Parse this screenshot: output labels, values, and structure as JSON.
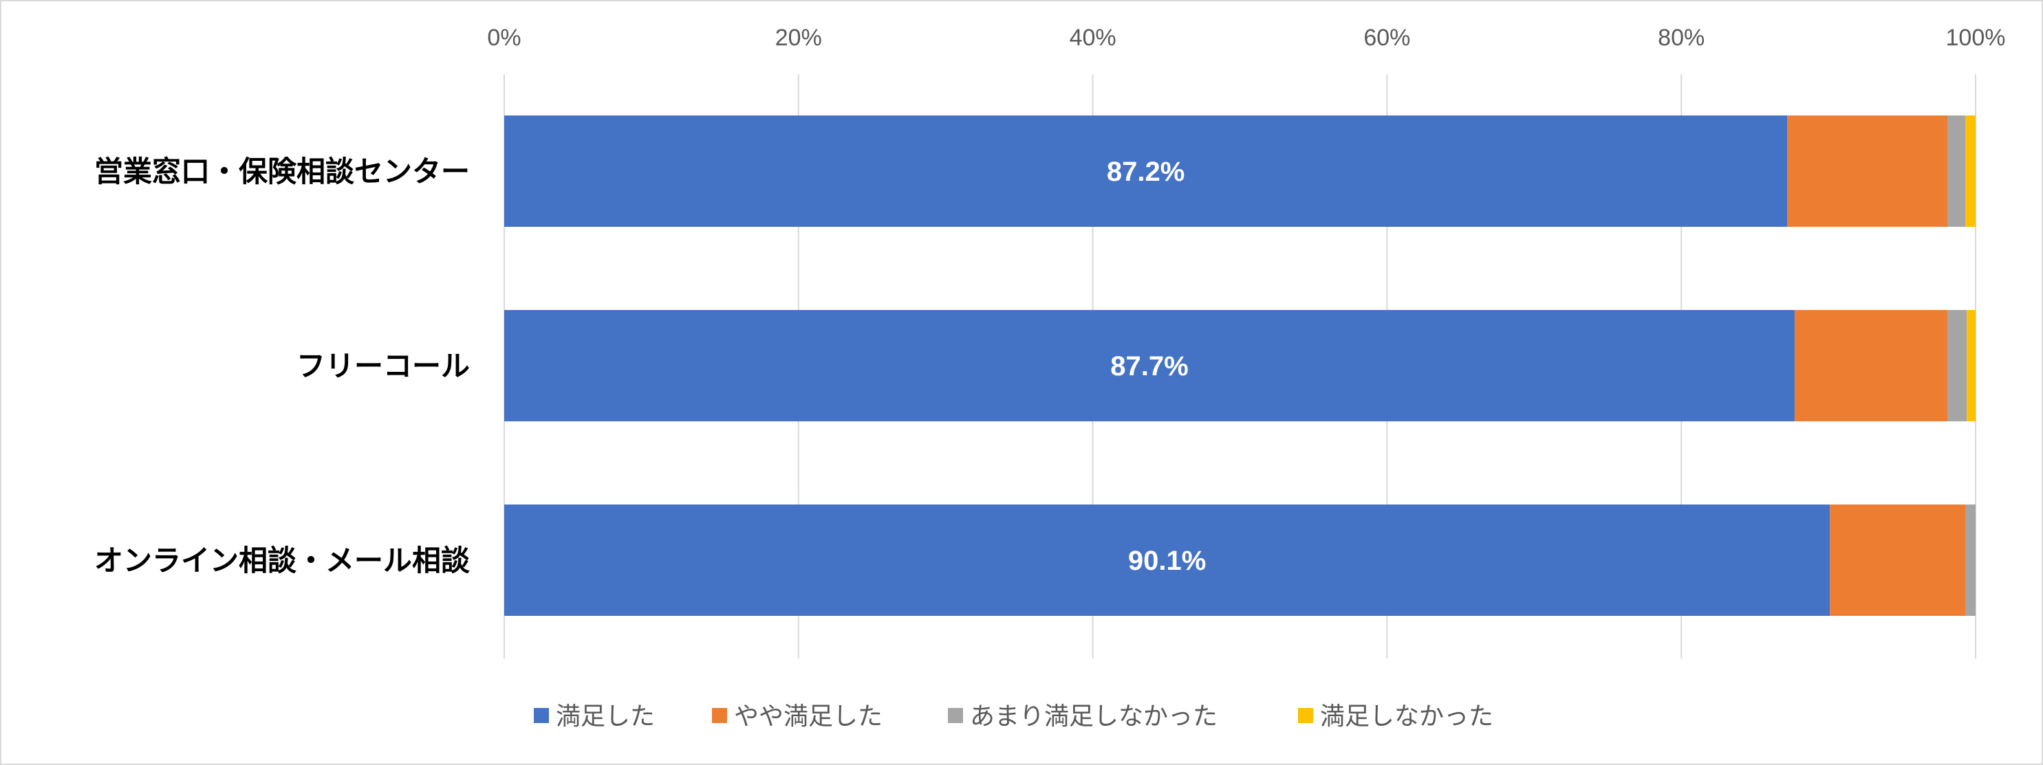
{
  "chart_data": {
    "type": "bar",
    "orientation": "horizontal",
    "stacked": "percent",
    "categories": [
      "営業窓口・保険相談センター",
      "フリーコール",
      "オンライン相談・メール相談"
    ],
    "series": [
      {
        "name": "満足した",
        "color": "#4472C4",
        "values": [
          87.2,
          87.7,
          90.1
        ],
        "labels": [
          "87.2%",
          "87.7%",
          "90.1%"
        ]
      },
      {
        "name": "やや満足した",
        "color": "#ED7D31",
        "values": [
          10.9,
          10.4,
          9.2
        ]
      },
      {
        "name": "あまり満足しなかった",
        "color": "#A5A5A5",
        "values": [
          1.2,
          1.3,
          0.7
        ]
      },
      {
        "name": "満足しなかった",
        "color": "#FFC000",
        "values": [
          0.7,
          0.6,
          0.0
        ]
      }
    ],
    "xticks": [
      "0%",
      "20%",
      "40%",
      "60%",
      "80%",
      "100%"
    ],
    "xlim": [
      0,
      100
    ],
    "axis_position": "top",
    "grid": true,
    "legend": "bottom"
  }
}
